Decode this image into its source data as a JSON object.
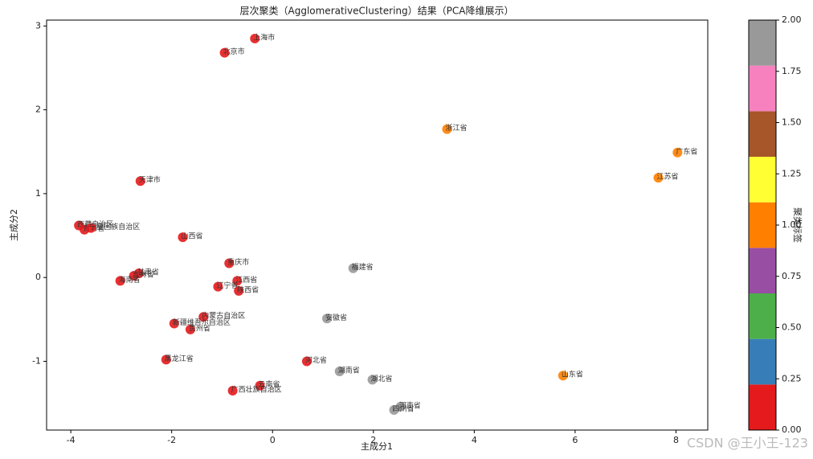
{
  "chart_data": {
    "type": "scatter",
    "title": "层次聚类（AgglomerativeClustering）结果（PCA降维展示）",
    "xlabel": "主成分1",
    "ylabel": "主成分2",
    "xlim": [
      -4.48,
      8.63
    ],
    "ylim": [
      -1.82,
      3.07
    ],
    "xticks": [
      -4,
      -2,
      0,
      2,
      4,
      6,
      8
    ],
    "yticks": [
      -1,
      0,
      1,
      2,
      3
    ],
    "labels": [
      "上海市",
      "北京市",
      "浙江省",
      "广东省",
      "江苏省",
      "天津市",
      "西藏自治区",
      "青海省",
      "宁夏回族自治区",
      "山西省",
      "重庆市",
      "福建省",
      "甘肃省",
      "吉林省",
      "海南省",
      "江西省",
      "辽宁省",
      "陕西省",
      "内蒙古自治区",
      "安徽省",
      "新疆维吾尔自治区",
      "贵州省",
      "黑龙江省",
      "河北省",
      "湖南省",
      "湖北省",
      "云南省",
      "广西壮族自治区",
      "河南省",
      "四川省",
      "山东省"
    ],
    "x": [
      -0.35,
      -0.95,
      3.46,
      8.03,
      7.65,
      -2.62,
      -3.84,
      -3.73,
      -3.6,
      -1.78,
      -0.86,
      1.6,
      -2.65,
      -2.75,
      -3.02,
      -0.7,
      -1.08,
      -0.67,
      -1.37,
      1.08,
      -1.95,
      -1.63,
      -2.11,
      0.68,
      1.33,
      1.98,
      -0.25,
      -0.79,
      2.54,
      2.41,
      5.76
    ],
    "y": [
      2.85,
      2.68,
      1.77,
      1.49,
      1.19,
      1.15,
      0.62,
      0.57,
      0.59,
      0.48,
      0.17,
      0.11,
      0.05,
      0.02,
      -0.04,
      -0.04,
      -0.11,
      -0.16,
      -0.47,
      -0.49,
      -0.55,
      -0.62,
      -0.98,
      -1.0,
      -1.12,
      -1.22,
      -1.29,
      -1.35,
      -1.54,
      -1.58,
      -1.17
    ],
    "clusters": [
      0,
      0,
      1,
      1,
      1,
      0,
      0,
      0,
      0,
      0,
      0,
      2,
      0,
      0,
      0,
      0,
      0,
      0,
      0,
      2,
      0,
      0,
      0,
      0,
      2,
      2,
      0,
      0,
      2,
      2,
      1
    ],
    "colorbar": {
      "label": "聚类标签",
      "colors": [
        "#e41a1c",
        "#377eb8",
        "#4daf4a",
        "#984ea3",
        "#ff7f00",
        "#ffff33",
        "#a65628",
        "#f781bf",
        "#999999"
      ],
      "lim": [
        0,
        2
      ],
      "ticks": [
        {
          "value": 0,
          "label": "0.00"
        },
        {
          "value": 0.25,
          "label": "0.25"
        },
        {
          "value": 0.5,
          "label": "0.50"
        },
        {
          "value": 0.75,
          "label": "0.75"
        },
        {
          "value": 1,
          "label": "1.00"
        },
        {
          "value": 1.25,
          "label": "1.25"
        },
        {
          "value": 1.5,
          "label": "1.50"
        },
        {
          "value": 1.75,
          "label": "1.75"
        },
        {
          "value": 2,
          "label": "2.00"
        }
      ]
    },
    "watermark": "CSDN @王小王-123"
  }
}
